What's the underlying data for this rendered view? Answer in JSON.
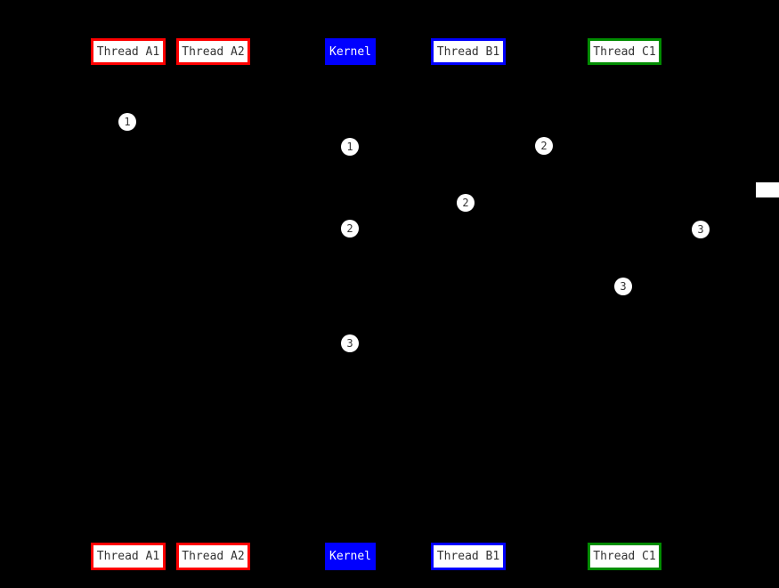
{
  "diagram": {
    "type": "sequence-lifeline-diagram",
    "background_color": "#000000",
    "participants": [
      {
        "label": "Thread A1",
        "border_color": "#ff0000",
        "fill_color": "#ffffff",
        "text_color": "#333333"
      },
      {
        "label": "Thread A2",
        "border_color": "#ff0000",
        "fill_color": "#ffffff",
        "text_color": "#333333"
      },
      {
        "label": "Kernel",
        "border_color": "#0000ff",
        "fill_color": "#0000ff",
        "text_color": "#ffffff"
      },
      {
        "label": "Thread B1",
        "border_color": "#0000ff",
        "fill_color": "#ffffff",
        "text_color": "#333333"
      },
      {
        "label": "Thread C1",
        "border_color": "#008c00",
        "fill_color": "#ffffff",
        "text_color": "#333333"
      }
    ],
    "step_markers": [
      {
        "label": "1"
      },
      {
        "label": "1"
      },
      {
        "label": "2"
      },
      {
        "label": "2"
      },
      {
        "label": "2"
      },
      {
        "label": "3"
      },
      {
        "label": "3"
      },
      {
        "label": "3"
      }
    ],
    "clipped_note": {
      "fill_color": "#ffffff"
    }
  }
}
